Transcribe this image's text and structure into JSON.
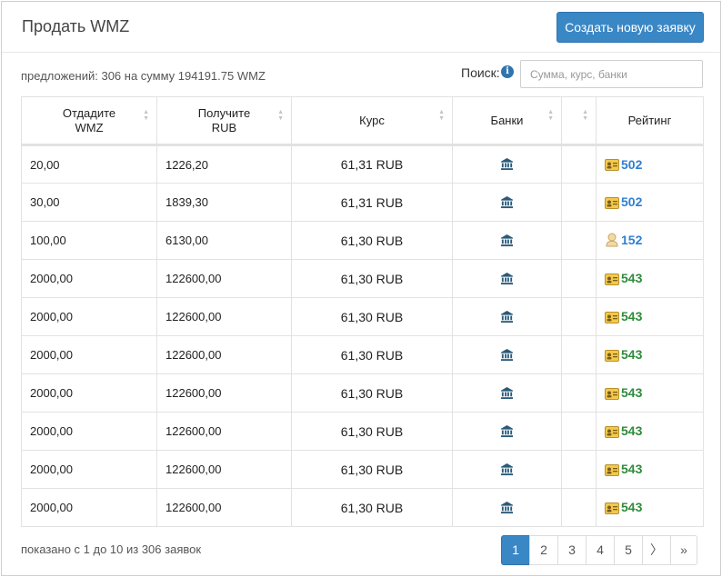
{
  "header": {
    "title": "Продать WMZ",
    "create_button": "Создать новую заявку"
  },
  "summary": "предложений: 306 на сумму 194191.75 WMZ",
  "search": {
    "label": "Поиск:",
    "placeholder": "Сумма, курс, банки"
  },
  "table": {
    "columns": {
      "give_line1": "Отдадите",
      "give_line2": "WMZ",
      "get_line1": "Получите",
      "get_line2": "RUB",
      "rate": "Курс",
      "banks": "Банки",
      "extra": "",
      "rating": "Рейтинг"
    },
    "rows": [
      {
        "give": "20,00",
        "get": "1226,20",
        "rate": "61,31 RUB",
        "rating": "502",
        "rating_color": "#2f7fd0",
        "badge": "card-icon"
      },
      {
        "give": "30,00",
        "get": "1839,30",
        "rate": "61,31 RUB",
        "rating": "502",
        "rating_color": "#2f7fd0",
        "badge": "card-icon"
      },
      {
        "give": "100,00",
        "get": "6130,00",
        "rate": "61,30 RUB",
        "rating": "152",
        "rating_color": "#2f7fd0",
        "badge": "person-icon"
      },
      {
        "give": "2000,00",
        "get": "122600,00",
        "rate": "61,30 RUB",
        "rating": "543",
        "rating_color": "#2e8b3a",
        "badge": "card-icon"
      },
      {
        "give": "2000,00",
        "get": "122600,00",
        "rate": "61,30 RUB",
        "rating": "543",
        "rating_color": "#2e8b3a",
        "badge": "card-icon"
      },
      {
        "give": "2000,00",
        "get": "122600,00",
        "rate": "61,30 RUB",
        "rating": "543",
        "rating_color": "#2e8b3a",
        "badge": "card-icon"
      },
      {
        "give": "2000,00",
        "get": "122600,00",
        "rate": "61,30 RUB",
        "rating": "543",
        "rating_color": "#2e8b3a",
        "badge": "card-icon"
      },
      {
        "give": "2000,00",
        "get": "122600,00",
        "rate": "61,30 RUB",
        "rating": "543",
        "rating_color": "#2e8b3a",
        "badge": "card-icon"
      },
      {
        "give": "2000,00",
        "get": "122600,00",
        "rate": "61,30 RUB",
        "rating": "543",
        "rating_color": "#2e8b3a",
        "badge": "card-icon"
      },
      {
        "give": "2000,00",
        "get": "122600,00",
        "rate": "61,30 RUB",
        "rating": "543",
        "rating_color": "#2e8b3a",
        "badge": "card-icon"
      }
    ]
  },
  "footer": {
    "info": "показано с 1 до 10 из 306 заявок",
    "pages": [
      "1",
      "2",
      "3",
      "4",
      "5",
      "〉",
      "»"
    ],
    "active_page": "1"
  },
  "colors": {
    "accent": "#3a87c6",
    "rate_text": "#3a6ea5",
    "bank_icon": "#2a5a7a"
  }
}
